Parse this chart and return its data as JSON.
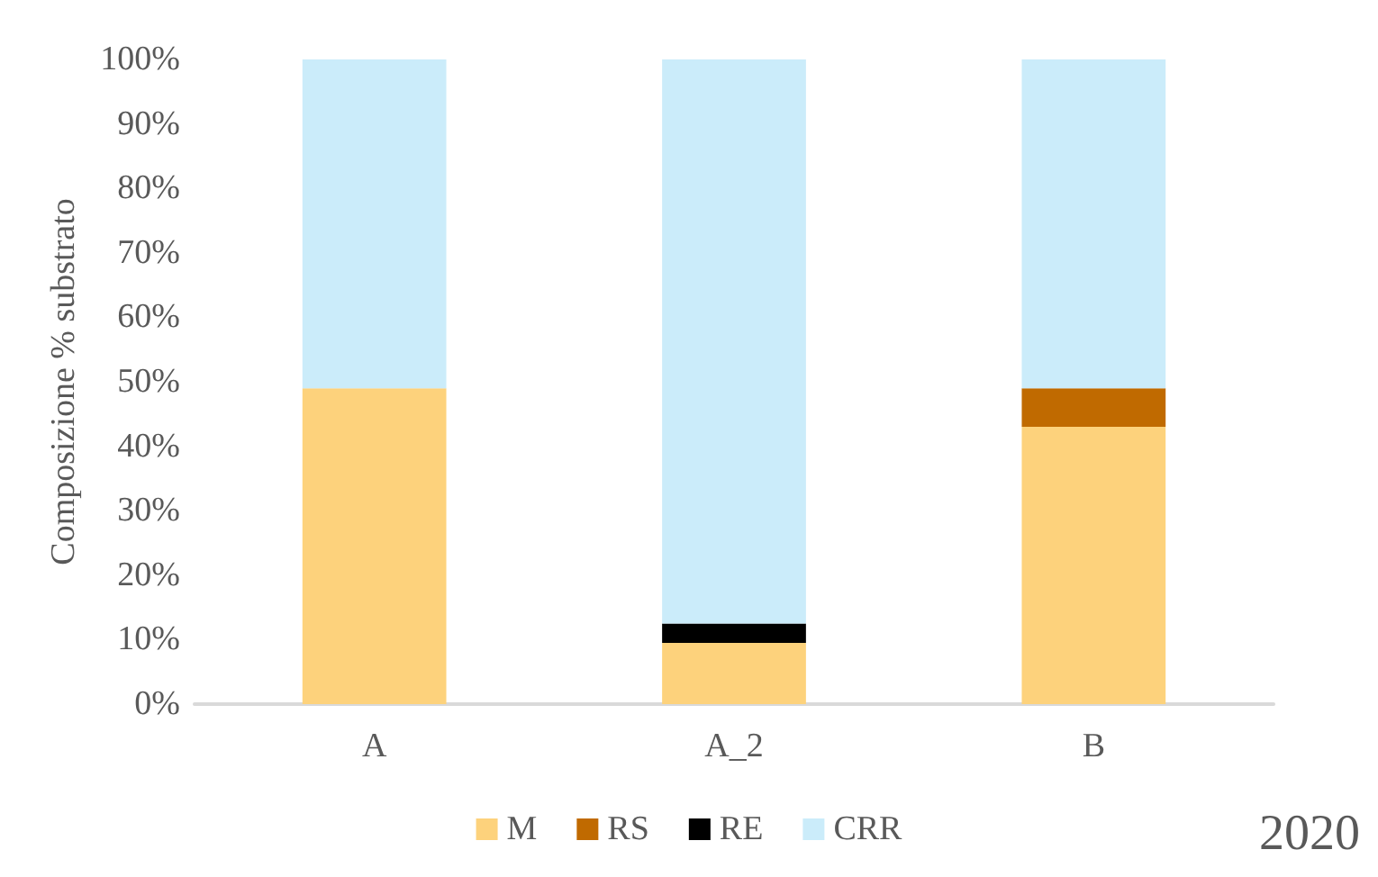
{
  "chart_data": {
    "type": "bar",
    "stacked": true,
    "ylabel": "Composizione % substrato",
    "categories": [
      "A",
      "A_2",
      "B"
    ],
    "series": [
      {
        "name": "M",
        "color": "#fdd27c",
        "values": [
          49,
          9.5,
          43
        ]
      },
      {
        "name": "RS",
        "color": "#c06a00",
        "values": [
          0,
          0,
          6
        ]
      },
      {
        "name": "RE",
        "color": "#000000",
        "values": [
          0,
          3,
          0
        ]
      },
      {
        "name": "CRR",
        "color": "#cbecfa",
        "values": [
          51,
          87.5,
          51
        ]
      }
    ],
    "ylim": [
      0,
      100
    ],
    "yticks": [
      {
        "value": 0,
        "label": "0%"
      },
      {
        "value": 10,
        "label": "10%"
      },
      {
        "value": 20,
        "label": "20%"
      },
      {
        "value": 30,
        "label": "30%"
      },
      {
        "value": 40,
        "label": "40%"
      },
      {
        "value": 50,
        "label": "50%"
      },
      {
        "value": 60,
        "label": "60%"
      },
      {
        "value": 70,
        "label": "70%"
      },
      {
        "value": 80,
        "label": "80%"
      },
      {
        "value": 90,
        "label": "90%"
      },
      {
        "value": 100,
        "label": "100%"
      }
    ],
    "grid": false,
    "legend": "bottom",
    "annotations": [
      "2020"
    ]
  }
}
